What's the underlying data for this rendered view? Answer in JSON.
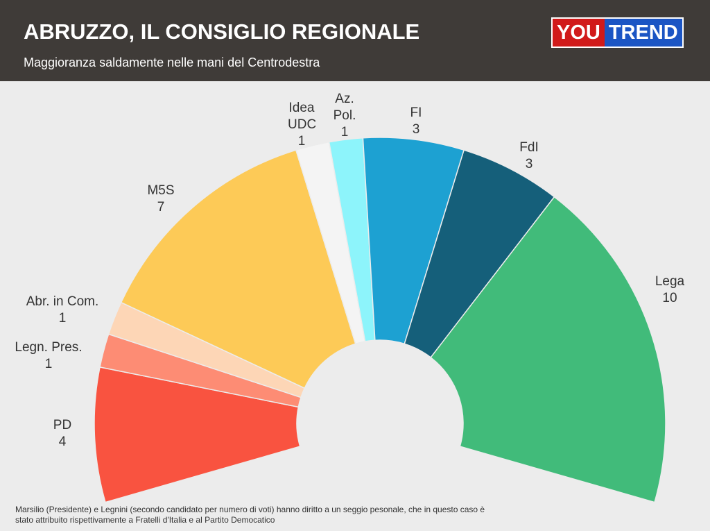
{
  "chart_data": {
    "type": "semicircle",
    "title": "ABRUZZO, IL CONSIGLIO REGIONALE",
    "subtitle": "Maggioranza saldamente nelle mani del Centrodestra",
    "footnote": "Marsilio (Presidente) e Legnini (secondo candidato per numero di voti) hanno diritto a un seggio pesonale, che in questo caso è stato attribuito rispettivamente a Fratelli d'Italia e al Partito Democatico",
    "categories": [
      "PD",
      "Legn. Pres.",
      "Abr. in Com.",
      "M5S",
      "Idea UDC",
      "Az. Pol.",
      "FI",
      "FdI",
      "Lega"
    ],
    "values": [
      4,
      1,
      1,
      7,
      1,
      1,
      3,
      3,
      10
    ],
    "colors": [
      "#f95340",
      "#fd8c74",
      "#fdd6b6",
      "#fdca57",
      "#f4f4f4",
      "#8df4fb",
      "#1da1d2",
      "#155f7a",
      "#41bb7a"
    ]
  },
  "logo": {
    "left": "YOU",
    "right": "TREND"
  }
}
